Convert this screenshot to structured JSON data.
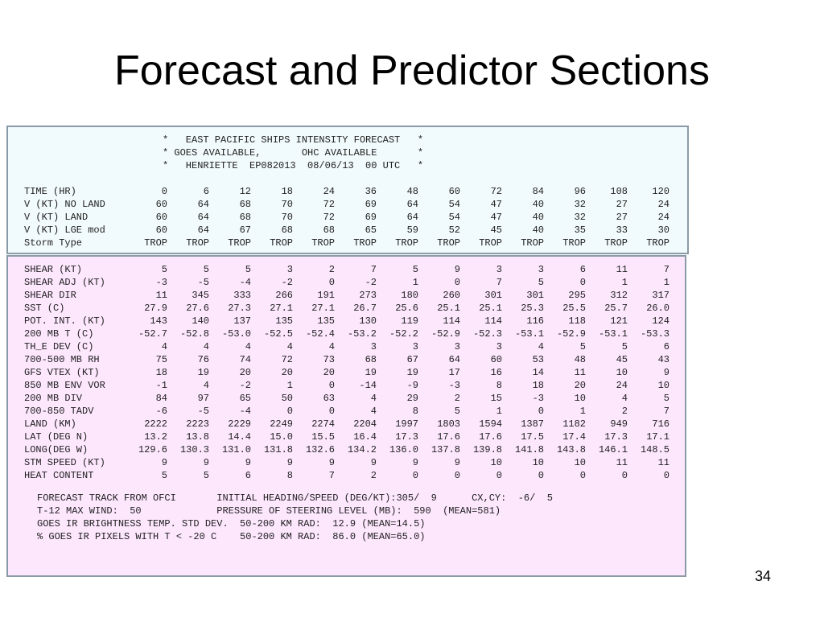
{
  "title": "Forecast and Predictor Sections",
  "page_number": "34",
  "forecast_header": [
    "*   EAST PACIFIC SHIPS INTENSITY FORECAST   *",
    "* GOES AVAILABLE,       OHC AVAILABLE       *",
    "*   HENRIETTE  EP082013  08/06/13  00 UTC   *"
  ],
  "forecast_rows": [
    {
      "label": "TIME (HR)",
      "values": [
        "0",
        "6",
        "12",
        "18",
        "24",
        "36",
        "48",
        "60",
        "72",
        "84",
        "96",
        "108",
        "120"
      ]
    },
    {
      "label": "V (KT) NO LAND",
      "values": [
        "60",
        "64",
        "68",
        "70",
        "72",
        "69",
        "64",
        "54",
        "47",
        "40",
        "32",
        "27",
        "24"
      ]
    },
    {
      "label": "V (KT) LAND",
      "values": [
        "60",
        "64",
        "68",
        "70",
        "72",
        "69",
        "64",
        "54",
        "47",
        "40",
        "32",
        "27",
        "24"
      ]
    },
    {
      "label": "V (KT) LGE mod",
      "values": [
        "60",
        "64",
        "67",
        "68",
        "68",
        "65",
        "59",
        "52",
        "45",
        "40",
        "35",
        "33",
        "30"
      ]
    },
    {
      "label": "Storm Type",
      "values": [
        "TROP",
        "TROP",
        "TROP",
        "TROP",
        "TROP",
        "TROP",
        "TROP",
        "TROP",
        "TROP",
        "TROP",
        "TROP",
        "TROP",
        "TROP"
      ]
    }
  ],
  "predictor_rows": [
    {
      "label": "SHEAR (KT)",
      "values": [
        "5",
        "5",
        "5",
        "3",
        "2",
        "7",
        "5",
        "9",
        "3",
        "3",
        "6",
        "11",
        "7"
      ]
    },
    {
      "label": "SHEAR ADJ (KT)",
      "values": [
        "-3",
        "-5",
        "-4",
        "-2",
        "0",
        "-2",
        "1",
        "0",
        "7",
        "5",
        "0",
        "1",
        "1"
      ]
    },
    {
      "label": "SHEAR DIR",
      "values": [
        "11",
        "345",
        "333",
        "266",
        "191",
        "273",
        "180",
        "260",
        "301",
        "301",
        "295",
        "312",
        "317"
      ]
    },
    {
      "label": "SST (C)",
      "values": [
        "27.9",
        "27.6",
        "27.3",
        "27.1",
        "27.1",
        "26.7",
        "25.6",
        "25.1",
        "25.1",
        "25.3",
        "25.5",
        "25.7",
        "26.0"
      ]
    },
    {
      "label": "POT. INT. (KT)",
      "values": [
        "143",
        "140",
        "137",
        "135",
        "135",
        "130",
        "119",
        "114",
        "114",
        "116",
        "118",
        "121",
        "124"
      ]
    },
    {
      "label": "200 MB T (C)",
      "values": [
        "-52.7",
        "-52.8",
        "-53.0",
        "-52.5",
        "-52.4",
        "-53.2",
        "-52.2",
        "-52.9",
        "-52.3",
        "-53.1",
        "-52.9",
        "-53.1",
        "-53.3"
      ]
    },
    {
      "label": "TH_E DEV (C)",
      "values": [
        "4",
        "4",
        "4",
        "4",
        "4",
        "3",
        "3",
        "3",
        "3",
        "4",
        "5",
        "5",
        "6"
      ]
    },
    {
      "label": "700-500 MB RH",
      "values": [
        "75",
        "76",
        "74",
        "72",
        "73",
        "68",
        "67",
        "64",
        "60",
        "53",
        "48",
        "45",
        "43"
      ]
    },
    {
      "label": "GFS VTEX (KT)",
      "values": [
        "18",
        "19",
        "20",
        "20",
        "20",
        "19",
        "19",
        "17",
        "16",
        "14",
        "11",
        "10",
        "9"
      ]
    },
    {
      "label": "850 MB ENV VOR",
      "values": [
        "-1",
        "4",
        "-2",
        "1",
        "0",
        "-14",
        "-9",
        "-3",
        "8",
        "18",
        "20",
        "24",
        "10"
      ]
    },
    {
      "label": "200 MB DIV",
      "values": [
        "84",
        "97",
        "65",
        "50",
        "63",
        "4",
        "29",
        "2",
        "15",
        "-3",
        "10",
        "4",
        "5"
      ]
    },
    {
      "label": "700-850 TADV",
      "values": [
        "-6",
        "-5",
        "-4",
        "0",
        "0",
        "4",
        "8",
        "5",
        "1",
        "0",
        "1",
        "2",
        "7"
      ]
    },
    {
      "label": "LAND (KM)",
      "values": [
        "2222",
        "2223",
        "2229",
        "2249",
        "2274",
        "2204",
        "1997",
        "1803",
        "1594",
        "1387",
        "1182",
        "949",
        "716"
      ]
    },
    {
      "label": "LAT (DEG N)",
      "values": [
        "13.2",
        "13.8",
        "14.4",
        "15.0",
        "15.5",
        "16.4",
        "17.3",
        "17.6",
        "17.6",
        "17.5",
        "17.4",
        "17.3",
        "17.1"
      ]
    },
    {
      "label": "LONG(DEG W)",
      "values": [
        "129.6",
        "130.3",
        "131.0",
        "131.8",
        "132.6",
        "134.2",
        "136.0",
        "137.8",
        "139.8",
        "141.8",
        "143.8",
        "146.1",
        "148.5"
      ]
    },
    {
      "label": "STM SPEED (KT)",
      "values": [
        "9",
        "9",
        "9",
        "9",
        "9",
        "9",
        "9",
        "9",
        "10",
        "10",
        "10",
        "11",
        "11"
      ]
    },
    {
      "label": "HEAT CONTENT",
      "values": [
        "5",
        "5",
        "6",
        "8",
        "7",
        "2",
        "0",
        "0",
        "0",
        "0",
        "0",
        "0",
        "0"
      ]
    }
  ],
  "footer_lines": [
    "FORECAST TRACK FROM OFCI       INITIAL HEADING/SPEED (DEG/KT):305/  9      CX,CY:  -6/  5",
    "T-12 MAX WIND:  50             PRESSURE OF STEERING LEVEL (MB):  590  (MEAN=581)",
    "GOES IR BRIGHTNESS TEMP. STD DEV.  50-200 KM RAD:  12.9 (MEAN=14.5)",
    "% GOES IR PIXELS WITH T < -20 C    50-200 KM RAD:  86.0 (MEAN=65.0)"
  ]
}
